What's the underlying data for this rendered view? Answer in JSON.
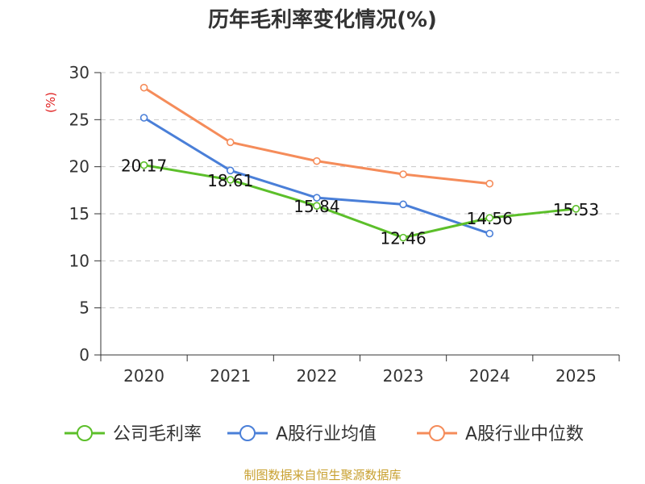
{
  "chart_data": {
    "type": "line",
    "title": "历年毛利率变化情况(%)",
    "ylabel": "(%)",
    "xlabel": "",
    "categories": [
      "2020",
      "2021",
      "2022",
      "2023",
      "2024",
      "2025"
    ],
    "ylim": [
      0,
      30
    ],
    "yticks": [
      0,
      5,
      10,
      15,
      20,
      25,
      30
    ],
    "grid": true,
    "legend_position": "bottom",
    "series": [
      {
        "name": "公司毛利率",
        "color": "#5cbf2a",
        "values": [
          20.17,
          18.61,
          15.84,
          12.46,
          14.56,
          15.53
        ],
        "labels": [
          "20.17",
          "18.61",
          "15.84",
          "12.46",
          "14.56",
          "15.53"
        ]
      },
      {
        "name": "A股行业均值",
        "color": "#4a7fd8",
        "values": [
          25.2,
          19.6,
          16.7,
          16.0,
          12.9,
          null
        ]
      },
      {
        "name": "A股行业中位数",
        "color": "#f58c5a",
        "values": [
          28.4,
          22.6,
          20.6,
          19.2,
          18.2,
          null
        ]
      }
    ],
    "source": "制图数据来自恒生聚源数据库"
  }
}
